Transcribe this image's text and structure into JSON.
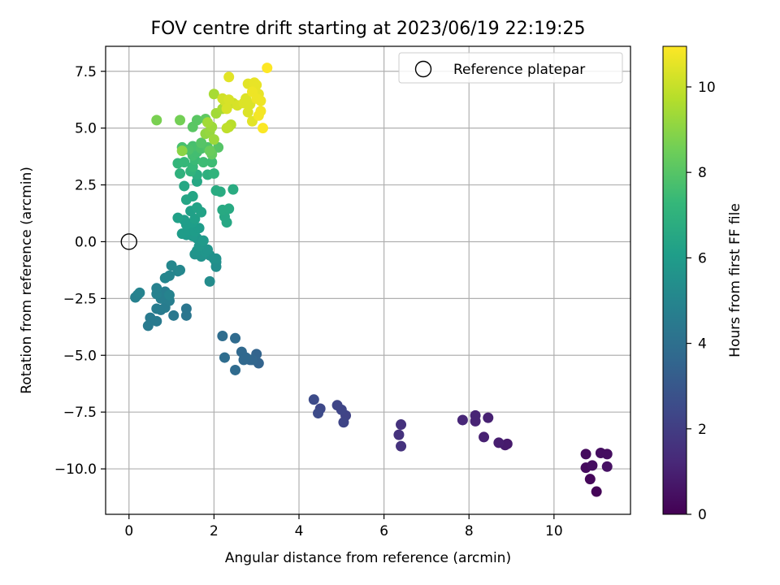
{
  "chart_data": {
    "type": "scatter",
    "title": "FOV centre drift starting at 2023/06/19 22:19:25",
    "xlabel": "Angular distance from reference (arcmin)",
    "ylabel": "Rotation from reference (arcmin)",
    "xlim": [
      -0.55,
      11.8
    ],
    "ylim": [
      -12.0,
      8.6
    ],
    "xticks": [
      0,
      2,
      4,
      6,
      8,
      10
    ],
    "xtick_labels": [
      "0",
      "2",
      "4",
      "6",
      "8",
      "10"
    ],
    "yticks": [
      -10.0,
      -7.5,
      -5.0,
      -2.5,
      0.0,
      2.5,
      5.0,
      7.5
    ],
    "ytick_labels": [
      "−10.0",
      "−7.5",
      "−5.0",
      "−2.5",
      "0.0",
      "2.5",
      "5.0",
      "7.5"
    ],
    "grid": true,
    "legend": {
      "placement": "top-right",
      "entries": [
        "Reference platepar"
      ]
    },
    "reference_point": {
      "x": 0.0,
      "y": 0.0
    },
    "colorbar": {
      "label": "Hours from first FF file",
      "range": [
        0,
        10.95
      ],
      "ticks": [
        0,
        2,
        4,
        6,
        8,
        10
      ],
      "tick_labels": [
        "0",
        "2",
        "4",
        "6",
        "8",
        "10"
      ],
      "colormap": "viridis",
      "stops": [
        "#440154",
        "#482878",
        "#3e4989",
        "#31688e",
        "#26828e",
        "#1f9e89",
        "#35b779",
        "#6ece58",
        "#b5de2b",
        "#fde725"
      ]
    },
    "points": [
      {
        "x": 11.0,
        "y": -11.0,
        "h": 0.1
      },
      {
        "x": 10.85,
        "y": -10.45,
        "h": 0.2
      },
      {
        "x": 10.75,
        "y": -9.95,
        "h": 0.3
      },
      {
        "x": 10.75,
        "y": -9.35,
        "h": 0.3
      },
      {
        "x": 10.9,
        "y": -9.85,
        "h": 0.4
      },
      {
        "x": 11.1,
        "y": -9.3,
        "h": 0.4
      },
      {
        "x": 11.25,
        "y": -9.35,
        "h": 0.4
      },
      {
        "x": 11.25,
        "y": -9.9,
        "h": 0.5
      },
      {
        "x": 8.9,
        "y": -8.9,
        "h": 0.8
      },
      {
        "x": 8.85,
        "y": -8.95,
        "h": 0.8
      },
      {
        "x": 8.7,
        "y": -8.85,
        "h": 0.9
      },
      {
        "x": 8.35,
        "y": -8.6,
        "h": 1.0
      },
      {
        "x": 8.45,
        "y": -7.75,
        "h": 1.0
      },
      {
        "x": 8.15,
        "y": -7.65,
        "h": 1.1
      },
      {
        "x": 8.15,
        "y": -7.9,
        "h": 1.1
      },
      {
        "x": 7.85,
        "y": -7.85,
        "h": 1.2
      },
      {
        "x": 6.4,
        "y": -8.05,
        "h": 1.6
      },
      {
        "x": 6.35,
        "y": -8.5,
        "h": 1.6
      },
      {
        "x": 6.4,
        "y": -9.0,
        "h": 1.6
      },
      {
        "x": 5.1,
        "y": -7.65,
        "h": 2.2
      },
      {
        "x": 5.05,
        "y": -7.95,
        "h": 2.3
      },
      {
        "x": 5.0,
        "y": -7.4,
        "h": 2.3
      },
      {
        "x": 4.9,
        "y": -7.2,
        "h": 2.3
      },
      {
        "x": 4.5,
        "y": -7.35,
        "h": 2.4
      },
      {
        "x": 4.45,
        "y": -7.55,
        "h": 2.5
      },
      {
        "x": 4.35,
        "y": -6.95,
        "h": 2.5
      },
      {
        "x": 3.05,
        "y": -5.35,
        "h": 3.5
      },
      {
        "x": 3.0,
        "y": -4.95,
        "h": 3.5
      },
      {
        "x": 2.9,
        "y": -5.2,
        "h": 3.6
      },
      {
        "x": 2.85,
        "y": -5.2,
        "h": 3.6
      },
      {
        "x": 2.75,
        "y": -5.1,
        "h": 3.7
      },
      {
        "x": 2.65,
        "y": -4.85,
        "h": 3.7
      },
      {
        "x": 2.7,
        "y": -5.2,
        "h": 3.7
      },
      {
        "x": 2.5,
        "y": -5.65,
        "h": 3.8
      },
      {
        "x": 2.5,
        "y": -4.25,
        "h": 3.8
      },
      {
        "x": 2.25,
        "y": -5.1,
        "h": 3.9
      },
      {
        "x": 2.2,
        "y": -4.15,
        "h": 3.9
      },
      {
        "x": 1.35,
        "y": -3.25,
        "h": 4.3
      },
      {
        "x": 1.35,
        "y": -2.95,
        "h": 4.3
      },
      {
        "x": 1.05,
        "y": -3.25,
        "h": 4.4
      },
      {
        "x": 0.75,
        "y": -3.0,
        "h": 4.5
      },
      {
        "x": 0.65,
        "y": -3.5,
        "h": 4.5
      },
      {
        "x": 0.5,
        "y": -3.35,
        "h": 4.5
      },
      {
        "x": 0.45,
        "y": -3.7,
        "h": 4.5
      },
      {
        "x": 0.65,
        "y": -2.95,
        "h": 4.6
      },
      {
        "x": 0.85,
        "y": -2.9,
        "h": 4.6
      },
      {
        "x": 0.75,
        "y": -2.5,
        "h": 4.7
      },
      {
        "x": 0.95,
        "y": -2.6,
        "h": 4.7
      },
      {
        "x": 0.85,
        "y": -2.2,
        "h": 4.7
      },
      {
        "x": 0.65,
        "y": -2.3,
        "h": 4.8
      },
      {
        "x": 0.65,
        "y": -2.05,
        "h": 4.8
      },
      {
        "x": 0.15,
        "y": -2.45,
        "h": 4.8
      },
      {
        "x": 0.2,
        "y": -2.35,
        "h": 4.8
      },
      {
        "x": 0.25,
        "y": -2.25,
        "h": 4.9
      },
      {
        "x": 0.95,
        "y": -2.35,
        "h": 4.9
      },
      {
        "x": 0.85,
        "y": -1.6,
        "h": 5.0
      },
      {
        "x": 0.95,
        "y": -1.5,
        "h": 5.0
      },
      {
        "x": 1.15,
        "y": -1.3,
        "h": 5.0
      },
      {
        "x": 1.2,
        "y": -1.25,
        "h": 5.1
      },
      {
        "x": 1.0,
        "y": -1.05,
        "h": 5.1
      },
      {
        "x": 1.9,
        "y": -1.75,
        "h": 5.3
      },
      {
        "x": 2.05,
        "y": -1.1,
        "h": 5.4
      },
      {
        "x": 2.05,
        "y": -0.9,
        "h": 5.4
      },
      {
        "x": 2.0,
        "y": -0.75,
        "h": 5.5
      },
      {
        "x": 2.05,
        "y": -0.75,
        "h": 5.5
      },
      {
        "x": 1.9,
        "y": -0.6,
        "h": 5.5
      },
      {
        "x": 1.7,
        "y": -0.65,
        "h": 5.6
      },
      {
        "x": 1.55,
        "y": -0.55,
        "h": 5.6
      },
      {
        "x": 1.6,
        "y": -0.4,
        "h": 5.7
      },
      {
        "x": 1.8,
        "y": -0.45,
        "h": 5.7
      },
      {
        "x": 1.85,
        "y": -0.35,
        "h": 5.7
      },
      {
        "x": 1.65,
        "y": -0.2,
        "h": 5.8
      },
      {
        "x": 1.7,
        "y": 0.0,
        "h": 5.8
      },
      {
        "x": 1.6,
        "y": 0.15,
        "h": 5.8
      },
      {
        "x": 1.75,
        "y": 0.05,
        "h": 5.9
      },
      {
        "x": 1.5,
        "y": 0.25,
        "h": 5.9
      },
      {
        "x": 1.35,
        "y": 0.3,
        "h": 5.9
      },
      {
        "x": 1.25,
        "y": 0.35,
        "h": 6.0
      },
      {
        "x": 1.4,
        "y": 0.5,
        "h": 6.0
      },
      {
        "x": 1.55,
        "y": 0.45,
        "h": 6.0
      },
      {
        "x": 1.65,
        "y": 0.6,
        "h": 6.0
      },
      {
        "x": 1.35,
        "y": 0.75,
        "h": 6.1
      },
      {
        "x": 1.5,
        "y": 0.85,
        "h": 6.1
      },
      {
        "x": 1.3,
        "y": 0.95,
        "h": 6.1
      },
      {
        "x": 1.15,
        "y": 1.05,
        "h": 6.2
      },
      {
        "x": 1.55,
        "y": 1.0,
        "h": 6.2
      },
      {
        "x": 1.45,
        "y": 1.35,
        "h": 6.2
      },
      {
        "x": 1.6,
        "y": 1.5,
        "h": 6.3
      },
      {
        "x": 1.7,
        "y": 1.3,
        "h": 6.3
      },
      {
        "x": 1.5,
        "y": 2.0,
        "h": 6.4
      },
      {
        "x": 1.35,
        "y": 1.85,
        "h": 6.4
      },
      {
        "x": 1.3,
        "y": 2.45,
        "h": 6.5
      },
      {
        "x": 1.6,
        "y": 2.65,
        "h": 6.5
      },
      {
        "x": 2.3,
        "y": 0.85,
        "h": 6.5
      },
      {
        "x": 2.25,
        "y": 1.1,
        "h": 6.5
      },
      {
        "x": 2.2,
        "y": 1.4,
        "h": 6.6
      },
      {
        "x": 2.35,
        "y": 1.45,
        "h": 6.6
      },
      {
        "x": 2.05,
        "y": 2.25,
        "h": 6.7
      },
      {
        "x": 2.15,
        "y": 2.2,
        "h": 6.7
      },
      {
        "x": 2.45,
        "y": 2.3,
        "h": 6.7
      },
      {
        "x": 1.6,
        "y": 2.95,
        "h": 6.8
      },
      {
        "x": 1.85,
        "y": 2.95,
        "h": 6.9
      },
      {
        "x": 1.2,
        "y": 3.0,
        "h": 7.0
      },
      {
        "x": 1.45,
        "y": 3.1,
        "h": 7.1
      },
      {
        "x": 2.0,
        "y": 3.0,
        "h": 7.1
      },
      {
        "x": 1.15,
        "y": 3.45,
        "h": 7.2
      },
      {
        "x": 1.3,
        "y": 3.5,
        "h": 7.3
      },
      {
        "x": 1.5,
        "y": 3.3,
        "h": 7.3
      },
      {
        "x": 1.55,
        "y": 3.6,
        "h": 7.4
      },
      {
        "x": 1.75,
        "y": 3.5,
        "h": 7.5
      },
      {
        "x": 1.95,
        "y": 3.5,
        "h": 7.5
      },
      {
        "x": 1.5,
        "y": 3.8,
        "h": 7.6
      },
      {
        "x": 1.6,
        "y": 3.95,
        "h": 7.6
      },
      {
        "x": 1.5,
        "y": 4.2,
        "h": 7.7
      },
      {
        "x": 1.25,
        "y": 4.15,
        "h": 7.7
      },
      {
        "x": 1.4,
        "y": 4.05,
        "h": 7.8
      },
      {
        "x": 1.7,
        "y": 4.1,
        "h": 7.8
      },
      {
        "x": 1.85,
        "y": 4.15,
        "h": 7.9
      },
      {
        "x": 2.1,
        "y": 4.15,
        "h": 8.0
      },
      {
        "x": 1.7,
        "y": 4.35,
        "h": 8.0
      },
      {
        "x": 1.5,
        "y": 5.05,
        "h": 8.1
      },
      {
        "x": 1.6,
        "y": 5.35,
        "h": 8.1
      },
      {
        "x": 1.8,
        "y": 5.4,
        "h": 8.2
      },
      {
        "x": 1.95,
        "y": 3.85,
        "h": 8.3
      },
      {
        "x": 1.9,
        "y": 4.0,
        "h": 8.4
      },
      {
        "x": 1.2,
        "y": 5.35,
        "h": 8.6
      },
      {
        "x": 0.65,
        "y": 5.35,
        "h": 8.7
      },
      {
        "x": 1.25,
        "y": 4.0,
        "h": 9.0
      },
      {
        "x": 1.8,
        "y": 4.75,
        "h": 9.1
      },
      {
        "x": 1.9,
        "y": 4.85,
        "h": 9.2
      },
      {
        "x": 1.95,
        "y": 5.05,
        "h": 9.3
      },
      {
        "x": 2.0,
        "y": 4.5,
        "h": 9.3
      },
      {
        "x": 1.85,
        "y": 5.25,
        "h": 9.4
      },
      {
        "x": 2.05,
        "y": 5.65,
        "h": 9.4
      },
      {
        "x": 2.2,
        "y": 5.85,
        "h": 9.5
      },
      {
        "x": 2.0,
        "y": 6.5,
        "h": 9.5
      },
      {
        "x": 2.35,
        "y": 5.05,
        "h": 9.8
      },
      {
        "x": 2.4,
        "y": 5.15,
        "h": 9.8
      },
      {
        "x": 2.3,
        "y": 5.0,
        "h": 9.9
      },
      {
        "x": 2.45,
        "y": 6.1,
        "h": 10.1
      },
      {
        "x": 2.2,
        "y": 6.3,
        "h": 10.2
      },
      {
        "x": 2.25,
        "y": 6.2,
        "h": 10.2
      },
      {
        "x": 2.35,
        "y": 6.25,
        "h": 10.3
      },
      {
        "x": 2.3,
        "y": 5.85,
        "h": 10.3
      },
      {
        "x": 2.55,
        "y": 6.0,
        "h": 10.3
      },
      {
        "x": 2.7,
        "y": 6.1,
        "h": 10.4
      },
      {
        "x": 2.75,
        "y": 6.3,
        "h": 10.4
      },
      {
        "x": 2.85,
        "y": 6.05,
        "h": 10.4
      },
      {
        "x": 2.8,
        "y": 5.7,
        "h": 10.4
      },
      {
        "x": 2.9,
        "y": 5.3,
        "h": 10.5
      },
      {
        "x": 2.35,
        "y": 7.25,
        "h": 10.5
      },
      {
        "x": 2.8,
        "y": 6.95,
        "h": 10.5
      },
      {
        "x": 2.95,
        "y": 7.0,
        "h": 10.6
      },
      {
        "x": 3.0,
        "y": 6.9,
        "h": 10.6
      },
      {
        "x": 3.05,
        "y": 6.5,
        "h": 10.6
      },
      {
        "x": 2.9,
        "y": 6.6,
        "h": 10.7
      },
      {
        "x": 3.0,
        "y": 6.3,
        "h": 10.7
      },
      {
        "x": 3.1,
        "y": 6.2,
        "h": 10.7
      },
      {
        "x": 3.1,
        "y": 5.75,
        "h": 10.8
      },
      {
        "x": 3.05,
        "y": 5.55,
        "h": 10.8
      },
      {
        "x": 3.15,
        "y": 5.0,
        "h": 10.9
      },
      {
        "x": 3.25,
        "y": 7.65,
        "h": 10.95
      }
    ]
  }
}
